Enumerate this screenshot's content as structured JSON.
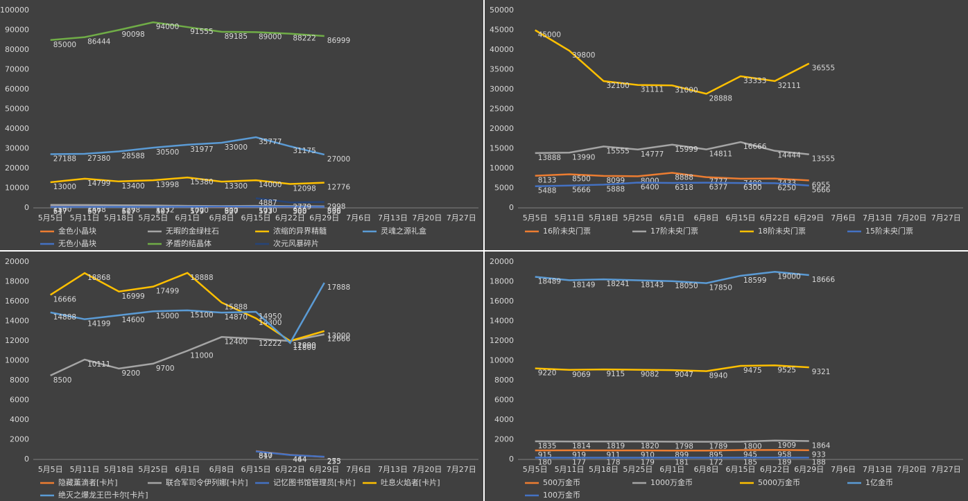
{
  "chart_data": [
    {
      "type": "line",
      "grid": false,
      "categories": [
        "5月5日",
        "5月11日",
        "5月18日",
        "5月25日",
        "6月1日",
        "6月8日",
        "6月15日",
        "6月22日",
        "6月29日",
        "7月6日",
        "7月13日",
        "7月20日",
        "7月27日"
      ],
      "ylim": [
        0,
        100000
      ],
      "yticks": [
        0,
        10000,
        20000,
        30000,
        40000,
        50000,
        60000,
        70000,
        80000,
        90000,
        100000
      ],
      "series": [
        {
          "name": "金色小晶块",
          "color": "#ed7d31",
          "values": [
            647,
            657,
            607,
            507,
            577,
            527,
            577,
            500,
            556,
            null,
            null,
            null,
            null
          ]
        },
        {
          "name": "无暇的金绿柱石",
          "color": "#a5a5a5",
          "values": [
            1500,
            1468,
            1298,
            1232,
            1000,
            900,
            1030,
            900,
            800,
            null,
            null,
            null,
            null
          ]
        },
        {
          "name": "浓缩的异界精髓",
          "color": "#ffc000",
          "values": [
            13000,
            14799,
            13400,
            13998,
            15380,
            13300,
            14000,
            12098,
            12776,
            null,
            null,
            null,
            null
          ]
        },
        {
          "name": "灵魂之源礼盒",
          "color": "#5b9bd5",
          "values": [
            27188,
            27380,
            28588,
            30500,
            31977,
            33000,
            35777,
            31175,
            27000,
            null,
            null,
            null,
            null
          ]
        },
        {
          "name": "无色小晶块",
          "color": "#4472c4",
          "values": [
            517,
            507,
            517,
            497,
            579,
            637,
            593,
            585,
            535,
            null,
            null,
            null,
            null
          ]
        },
        {
          "name": "矛盾的结晶体",
          "color": "#70ad47",
          "values": [
            85000,
            86444,
            90098,
            94000,
            91555,
            89185,
            89000,
            88222,
            86999,
            null,
            null,
            null,
            null
          ]
        },
        {
          "name": "次元风暴碎片",
          "color": "#264478",
          "values": [
            null,
            null,
            null,
            null,
            null,
            null,
            4887,
            2779,
            2998,
            null,
            null,
            null,
            null
          ]
        }
      ]
    },
    {
      "type": "line",
      "grid": false,
      "categories": [
        "5月5日",
        "5月11日",
        "5月18日",
        "5月25日",
        "6月1日",
        "6月8日",
        "6月15日",
        "6月22日",
        "6月29日",
        "7月6日",
        "7月13日",
        "7月20日",
        "7月27日"
      ],
      "ylim": [
        0,
        50000
      ],
      "yticks": [
        0,
        5000,
        10000,
        15000,
        20000,
        25000,
        30000,
        35000,
        40000,
        45000,
        50000
      ],
      "series": [
        {
          "name": "16阶未央门票",
          "color": "#ed7d31",
          "values": [
            8133,
            8500,
            8099,
            8000,
            8888,
            7777,
            7400,
            7433,
            6955,
            null,
            null,
            null,
            null
          ]
        },
        {
          "name": "17阶未央门票",
          "color": "#a5a5a5",
          "values": [
            13888,
            13990,
            15555,
            14777,
            15999,
            14811,
            16666,
            14444,
            13555,
            null,
            null,
            null,
            null
          ]
        },
        {
          "name": "18阶未央门票",
          "color": "#ffc000",
          "values": [
            45000,
            39800,
            32100,
            31111,
            31000,
            28888,
            33333,
            32111,
            36555,
            null,
            null,
            null,
            null
          ]
        },
        {
          "name": "15阶未央门票",
          "color": "#4472c4",
          "values": [
            5488,
            5666,
            5888,
            6400,
            6318,
            6377,
            6300,
            6250,
            5666,
            null,
            null,
            null,
            null
          ]
        }
      ]
    },
    {
      "type": "line",
      "grid": false,
      "categories": [
        "5月5日",
        "5月11日",
        "5月18日",
        "5月25日",
        "6月1日",
        "6月8日",
        "6月15日",
        "6月22日",
        "6月29日",
        "7月6日",
        "7月13日",
        "7月20日",
        "7月27日"
      ],
      "ylim": [
        0,
        20000
      ],
      "yticks": [
        0,
        2000,
        4000,
        6000,
        8000,
        10000,
        12000,
        14000,
        16000,
        18000,
        20000
      ],
      "series": [
        {
          "name": "隐藏薰滴者[卡片]",
          "color": "#ed7d31",
          "values": [
            null,
            null,
            null,
            null,
            null,
            null,
            840,
            464,
            255,
            null,
            null,
            null,
            null
          ]
        },
        {
          "name": "联合军司令伊列娜[卡片]",
          "color": "#a5a5a5",
          "values": [
            8500,
            10111,
            9200,
            9700,
            11000,
            12400,
            12222,
            11990,
            12666,
            null,
            null,
            null,
            null
          ]
        },
        {
          "name": "记忆图书馆管理员[卡片]",
          "color": "#4472c4",
          "values": [
            null,
            null,
            null,
            null,
            null,
            null,
            817,
            444,
            273,
            null,
            null,
            null,
            null
          ]
        },
        {
          "name": "吐息火焰者[卡片]",
          "color": "#ffc000",
          "values": [
            16666,
            18868,
            16999,
            17499,
            18888,
            15888,
            14300,
            12000,
            13000,
            null,
            null,
            null,
            null
          ]
        },
        {
          "name": "绝灭之爆龙王巴卡尔[卡片]",
          "color": "#5b9bd5",
          "values": [
            14888,
            14199,
            14600,
            15000,
            15100,
            14870,
            14950,
            11800,
            17888,
            null,
            null,
            null,
            null
          ]
        }
      ]
    },
    {
      "type": "line",
      "grid": false,
      "categories": [
        "5月5日",
        "5月11日",
        "5月18日",
        "5月25日",
        "6月1日",
        "6月8日",
        "6月15日",
        "6月22日",
        "6月29日",
        "7月6日",
        "7月13日",
        "7月20日",
        "7月27日"
      ],
      "ylim": [
        0,
        20000
      ],
      "yticks": [
        0,
        2000,
        4000,
        6000,
        8000,
        10000,
        12000,
        14000,
        16000,
        18000,
        20000
      ],
      "series": [
        {
          "name": "500万金币",
          "color": "#ed7d31",
          "values": [
            915,
            919,
            911,
            910,
            899,
            895,
            945,
            958,
            933,
            null,
            null,
            null,
            null
          ]
        },
        {
          "name": "1000万金币",
          "color": "#a5a5a5",
          "values": [
            1835,
            1814,
            1819,
            1820,
            1798,
            1789,
            1800,
            1909,
            1864,
            null,
            null,
            null,
            null
          ]
        },
        {
          "name": "5000万金币",
          "color": "#ffc000",
          "values": [
            9220,
            9069,
            9115,
            9082,
            9047,
            8940,
            9475,
            9525,
            9321,
            null,
            null,
            null,
            null
          ]
        },
        {
          "name": "1亿金币",
          "color": "#5b9bd5",
          "values": [
            18489,
            18149,
            18241,
            18143,
            18050,
            17850,
            18599,
            19000,
            18666,
            null,
            null,
            null,
            null
          ]
        },
        {
          "name": "100万金币",
          "color": "#4472c4",
          "values": [
            180,
            177,
            178,
            179,
            181,
            172,
            185,
            189,
            188,
            null,
            null,
            null,
            null
          ]
        }
      ]
    }
  ]
}
